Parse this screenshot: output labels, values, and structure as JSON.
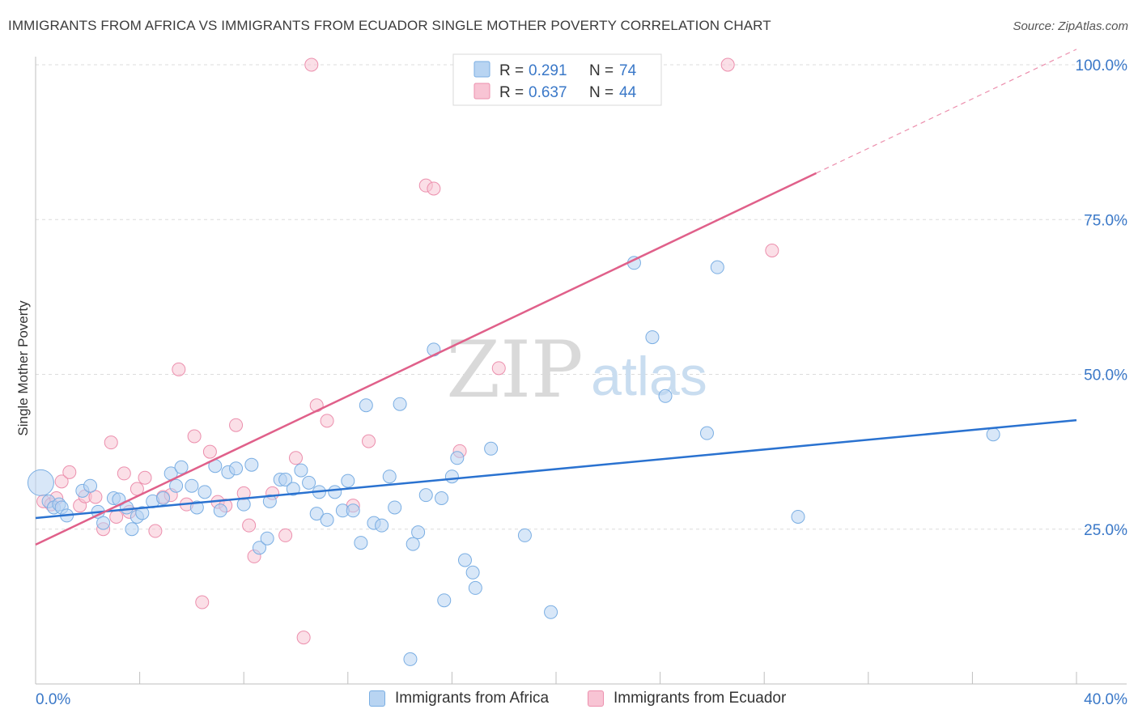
{
  "header": {
    "title": "IMMIGRANTS FROM AFRICA VS IMMIGRANTS FROM ECUADOR SINGLE MOTHER POVERTY CORRELATION CHART",
    "source": "Source: ZipAtlas.com"
  },
  "watermark": {
    "zip": "ZIP",
    "atlas": "atlas"
  },
  "legend_top": {
    "rows": [
      {
        "r_label": "R = ",
        "r_value": "0.291",
        "n_label": "N = ",
        "n_value": "74"
      },
      {
        "r_label": "R = ",
        "r_value": "0.637",
        "n_label": "N = ",
        "n_value": "44"
      }
    ]
  },
  "legend_bottom": {
    "africa": "Immigrants from Africa",
    "ecuador": "Immigrants from Ecuador"
  },
  "colors": {
    "africa_fill": "#b8d4f2",
    "africa_stroke": "#7aaee3",
    "africa_line": "#2a72d0",
    "ecuador_fill": "#f8c4d4",
    "ecuador_stroke": "#ec8fad",
    "ecuador_line": "#e0608a",
    "axis_label": "#3a78c8",
    "grid": "#dcdcdc"
  },
  "chart_data": {
    "type": "scatter",
    "title": "IMMIGRANTS FROM AFRICA VS IMMIGRANTS FROM ECUADOR SINGLE MOTHER POVERTY CORRELATION CHART",
    "xlabel": "",
    "ylabel": "Single Mother Poverty",
    "xlim": [
      0,
      40
    ],
    "ylim": [
      0,
      100
    ],
    "x_tick_labels": [
      "0.0%",
      "40.0%"
    ],
    "y_ticks": [
      25,
      50,
      75,
      100
    ],
    "y_tick_labels": [
      "25.0%",
      "50.0%",
      "75.0%",
      "100.0%"
    ],
    "series": [
      {
        "name": "Immigrants from Africa",
        "r": 0.291,
        "n": 74,
        "trend": {
          "x0": 0,
          "y0": 26.8,
          "x1": 40,
          "y1": 42.6
        },
        "points": [
          [
            0.2,
            32.5
          ],
          [
            0.5,
            29.5
          ],
          [
            0.7,
            28.5
          ],
          [
            0.9,
            29
          ],
          [
            1.0,
            28.5
          ],
          [
            1.2,
            27.2
          ],
          [
            1.8,
            31.2
          ],
          [
            2.1,
            32
          ],
          [
            2.4,
            27.8
          ],
          [
            2.6,
            26
          ],
          [
            3.0,
            30
          ],
          [
            3.2,
            29.8
          ],
          [
            3.5,
            28.5
          ],
          [
            3.7,
            25
          ],
          [
            3.9,
            27
          ],
          [
            4.1,
            27.6
          ],
          [
            4.5,
            29.5
          ],
          [
            4.9,
            30
          ],
          [
            5.2,
            34
          ],
          [
            5.4,
            32
          ],
          [
            5.6,
            35
          ],
          [
            6.0,
            32
          ],
          [
            6.2,
            28.5
          ],
          [
            6.5,
            31
          ],
          [
            6.9,
            35.2
          ],
          [
            7.1,
            28
          ],
          [
            7.4,
            34.2
          ],
          [
            7.7,
            34.8
          ],
          [
            8.0,
            29
          ],
          [
            8.3,
            35.4
          ],
          [
            8.6,
            22
          ],
          [
            8.9,
            23.5
          ],
          [
            9.0,
            29.5
          ],
          [
            9.4,
            33
          ],
          [
            9.6,
            33
          ],
          [
            9.9,
            31.5
          ],
          [
            10.2,
            34.5
          ],
          [
            10.5,
            32.5
          ],
          [
            10.8,
            27.5
          ],
          [
            10.9,
            31
          ],
          [
            11.2,
            26.5
          ],
          [
            11.5,
            31
          ],
          [
            11.8,
            28
          ],
          [
            12.0,
            32.8
          ],
          [
            12.2,
            28
          ],
          [
            12.5,
            22.8
          ],
          [
            12.7,
            45
          ],
          [
            13.0,
            26
          ],
          [
            13.3,
            25.6
          ],
          [
            13.6,
            33.5
          ],
          [
            13.8,
            28.5
          ],
          [
            14.0,
            45.2
          ],
          [
            14.5,
            22.6
          ],
          [
            14.7,
            24.5
          ],
          [
            15.0,
            30.5
          ],
          [
            15.3,
            54
          ],
          [
            15.6,
            30
          ],
          [
            15.7,
            13.5
          ],
          [
            16.0,
            33.5
          ],
          [
            16.2,
            36.5
          ],
          [
            16.5,
            20
          ],
          [
            16.8,
            18
          ],
          [
            16.9,
            15.5
          ],
          [
            17.5,
            38
          ],
          [
            18.8,
            24
          ],
          [
            19.8,
            11.6
          ],
          [
            23.0,
            68
          ],
          [
            23.7,
            56
          ],
          [
            24.2,
            46.5
          ],
          [
            25.8,
            40.5
          ],
          [
            26.2,
            67.3
          ],
          [
            29.3,
            27
          ],
          [
            36.8,
            40.3
          ],
          [
            14.4,
            4
          ]
        ]
      },
      {
        "name": "Immigrants from Ecuador",
        "r": 0.637,
        "n": 44,
        "trend": {
          "x0": 0,
          "y0": 22.5,
          "x1": 30,
          "y1": 82.5
        },
        "trend_dashed_to": {
          "x": 40,
          "y": 102.5
        },
        "points": [
          [
            0.3,
            29.5
          ],
          [
            0.6,
            29
          ],
          [
            0.8,
            30
          ],
          [
            1.0,
            32.7
          ],
          [
            1.3,
            34.2
          ],
          [
            1.7,
            28.8
          ],
          [
            1.9,
            30.3
          ],
          [
            2.3,
            30.2
          ],
          [
            2.6,
            25
          ],
          [
            2.9,
            39
          ],
          [
            3.1,
            27
          ],
          [
            3.4,
            34
          ],
          [
            3.6,
            27.8
          ],
          [
            3.9,
            31.5
          ],
          [
            4.2,
            33.3
          ],
          [
            4.6,
            24.7
          ],
          [
            4.9,
            30.2
          ],
          [
            5.2,
            30.5
          ],
          [
            5.5,
            50.8
          ],
          [
            5.8,
            29
          ],
          [
            6.1,
            40
          ],
          [
            6.4,
            13.2
          ],
          [
            6.7,
            37.5
          ],
          [
            7.0,
            29.4
          ],
          [
            7.3,
            28.8
          ],
          [
            7.7,
            41.8
          ],
          [
            8.0,
            30.8
          ],
          [
            8.2,
            25.6
          ],
          [
            8.4,
            20.6
          ],
          [
            9.1,
            30.8
          ],
          [
            9.6,
            24
          ],
          [
            10.0,
            36.5
          ],
          [
            10.3,
            7.5
          ],
          [
            10.6,
            100
          ],
          [
            10.8,
            45
          ],
          [
            11.2,
            42.5
          ],
          [
            12.2,
            28.8
          ],
          [
            12.8,
            39.2
          ],
          [
            15.0,
            80.5
          ],
          [
            15.3,
            80
          ],
          [
            16.3,
            37.6
          ],
          [
            17.8,
            51
          ],
          [
            26.6,
            100
          ],
          [
            28.3,
            70
          ]
        ]
      }
    ]
  }
}
